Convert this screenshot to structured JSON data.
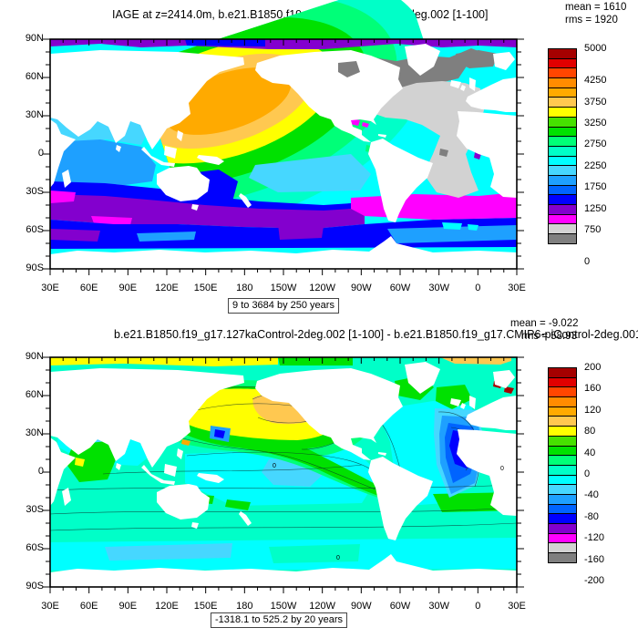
{
  "figure": {
    "background": "#ffffff"
  },
  "palette_bottom_to_top": [
    "#7f7f7f",
    "#d2d2d2",
    "#ff00ff",
    "#8300ce",
    "#0000ff",
    "#0064ff",
    "#1ea0ff",
    "#46d7ff",
    "#00ffff",
    "#00ffc8",
    "#00ff78",
    "#00e100",
    "#46e100",
    "#ffff00",
    "#ffc850",
    "#ffaa00",
    "#ff8c00",
    "#ff4600",
    "#e10000",
    "#a50000"
  ],
  "axes": {
    "x_labels": [
      "30E",
      "60E",
      "90E",
      "120E",
      "150E",
      "180",
      "150W",
      "120W",
      "90W",
      "60W",
      "30W",
      "0",
      "30E"
    ],
    "y_labels": [
      "90N",
      "60N",
      "30N",
      "0",
      "30S",
      "60S",
      "90S"
    ]
  },
  "panels": [
    {
      "title": "IAGE at z=2414.0m, b.e21.B1850.f19_g17.127kaControl-2deg.002 [1-100]",
      "mean_text": "mean = 1610",
      "rms_text": "rms = 1920",
      "caption": "9 to 3684 by 250 years",
      "colorbar": {
        "max": 5000,
        "range": 5000,
        "tick_labels": [
          "5000",
          "4250",
          "3750",
          "3250",
          "2750",
          "2250",
          "1750",
          "1250",
          "750",
          "0"
        ]
      }
    },
    {
      "title": "b.e21.B1850.f19_g17.127kaControl-2deg.002 [1-100] - b.e21.B1850.f19_g17.CMIP6-piControl-2deg.001",
      "mean_text": "mean = -9.022",
      "rms_text": "rms = 58.93",
      "caption": "-1318.1 to 525.2 by 20 years",
      "zero_label": "0",
      "colorbar": {
        "max": 200,
        "range": 400,
        "tick_labels": [
          "200",
          "160",
          "120",
          "80",
          "40",
          "0",
          "-40",
          "-80",
          "-120",
          "-160",
          "-200"
        ]
      }
    }
  ],
  "chart_data": [
    {
      "type": "heatmap",
      "subtype": "filled-contour-world-map",
      "variable": "IAGE",
      "depth": "z=2414.0m",
      "case": "b.e21.B1850.f19_g17.127kaControl-2deg.002",
      "time_average": "[1-100]",
      "units": "years",
      "mean": 1610,
      "rms": 1920,
      "data_min": 9,
      "data_max": 3684,
      "contour_interval": 250,
      "colorbar_min": 0,
      "colorbar_max": 5000,
      "colorbar_ticks": [
        5000,
        4250,
        3750,
        3250,
        2750,
        2250,
        1750,
        1250,
        750,
        0
      ],
      "projection": "equirectangular",
      "lon_ticks": [
        "30E",
        "60E",
        "90E",
        "120E",
        "150E",
        "180",
        "150W",
        "120W",
        "90W",
        "60W",
        "30W",
        "0",
        "30E"
      ],
      "lat_ticks": [
        "90N",
        "60N",
        "30N",
        "0",
        "30S",
        "60S",
        "90S"
      ],
      "features": [
        "oldest water 3250-4250 yr (orange/gold) in northwest North Pacific",
        "young water <500 yr (gray) filling North and tropical Atlantic",
        "500-1000 yr (magenta/purple) Southern Ocean band ~35-55S and Arctic rim",
        "1000-1250 yr (blue) circumpolar band ~55-70S",
        "1500-2500 yr (blue-cyan) Indian Ocean and South Pacific"
      ]
    },
    {
      "type": "heatmap",
      "subtype": "filled-contour-world-map-difference",
      "variable": "IAGE difference",
      "depth": "z=2414.0m",
      "case": "b.e21.B1850.f19_g17.127kaControl-2deg.002 [1-100] minus b.e21.B1850.f19_g17.CMIP6-piControl-2deg.001",
      "units": "years",
      "mean": -9.022,
      "rms": 58.93,
      "data_min": -1318.1,
      "data_max": 525.2,
      "contour_interval": 20,
      "colorbar_min": -200,
      "colorbar_max": 200,
      "colorbar_ticks": [
        200,
        160,
        120,
        80,
        40,
        0,
        -40,
        -80,
        -120,
        -160,
        -200
      ],
      "features": [
        "+40 to +160 yr (yellow/gold) North Pacific and Arctic band",
        "-20 to -60 yr (turquoise/cyan) over most of the ocean",
        "-80 to -160 yr (dark blue) blob in southeast Atlantic, spots in Caribbean and west Pacific",
        "+20 to +60 yr (green) band sweeping southeast across the South Pacific, green patches North Atlantic",
        ">+180 yr (dark red) specks near Mediterranean outflow",
        "zero contour labeled in south Pacific and Atlantic sectors"
      ]
    }
  ]
}
